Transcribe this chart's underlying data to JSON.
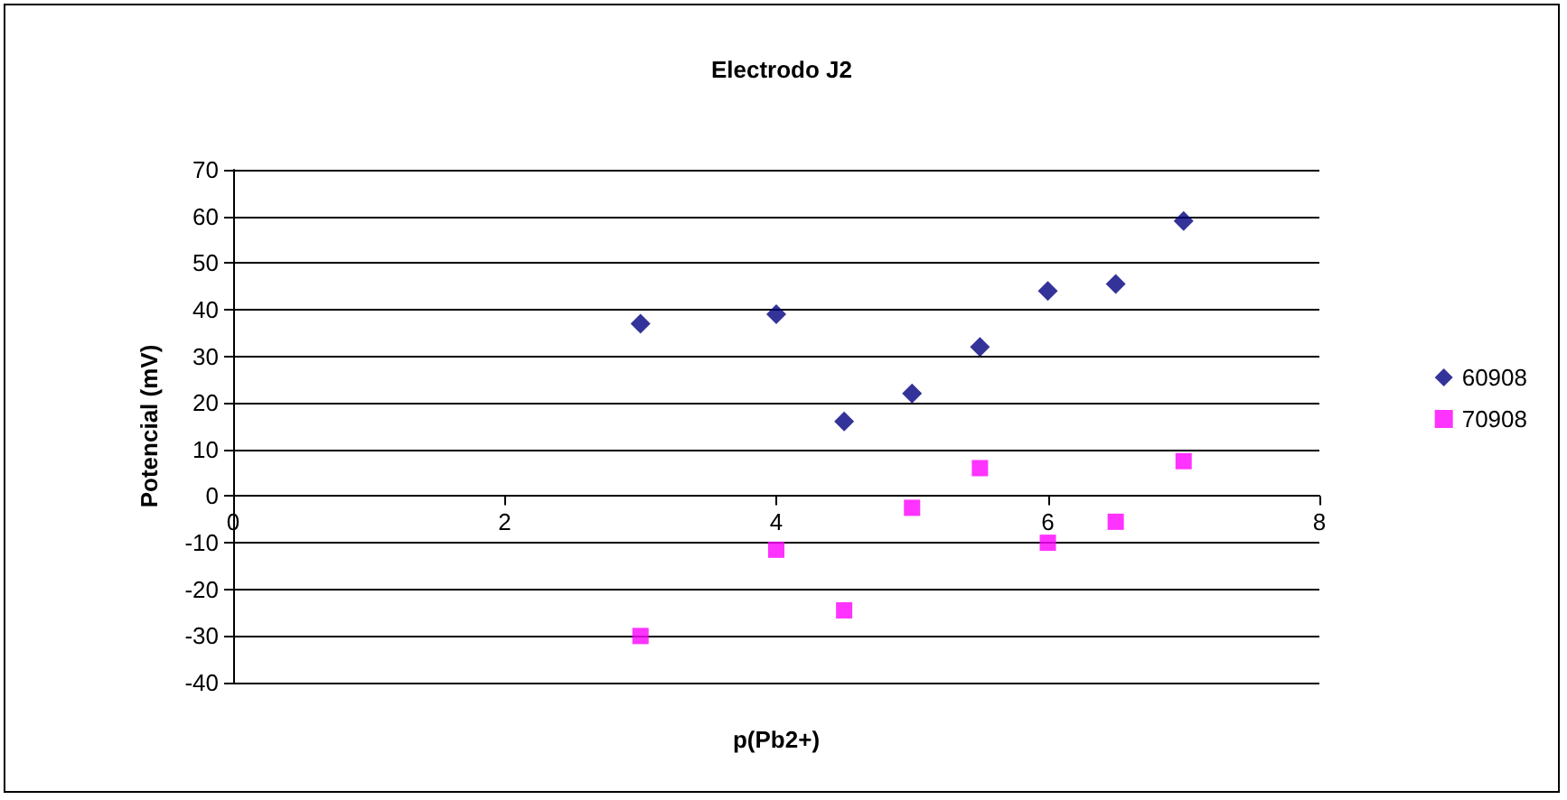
{
  "chart_data": {
    "type": "scatter",
    "title": "Electrodo J2",
    "xlabel": "p(Pb2+)",
    "ylabel": "Potencial (mV)",
    "x": [
      3,
      4,
      4.5,
      5,
      5.5,
      6,
      6.5,
      7
    ],
    "series": [
      {
        "name": "60908",
        "color": "#000080",
        "marker": "diamond",
        "values": [
          37,
          39,
          16,
          22,
          32,
          44,
          45.5,
          59
        ]
      },
      {
        "name": "70908",
        "color": "#ff00ff",
        "marker": "square",
        "values": [
          -30,
          -11.5,
          -24.5,
          -2.5,
          6,
          -10,
          -5.5,
          7.5
        ]
      }
    ],
    "xlim": [
      0,
      8
    ],
    "xticks": [
      0,
      2,
      4,
      6,
      8
    ],
    "ylim": [
      -40,
      70
    ],
    "yticks": [
      -40,
      -30,
      -20,
      -10,
      0,
      10,
      20,
      30,
      40,
      50,
      60,
      70
    ],
    "grid": "y",
    "legend": "right"
  }
}
